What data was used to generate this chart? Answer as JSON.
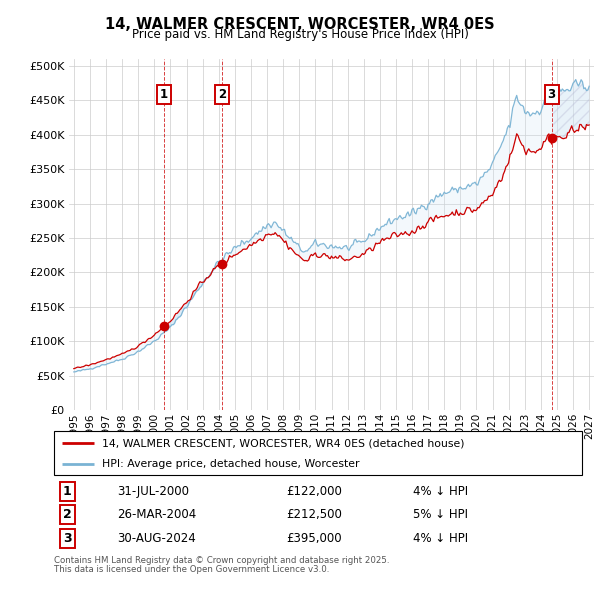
{
  "title": "14, WALMER CRESCENT, WORCESTER, WR4 0ES",
  "subtitle": "Price paid vs. HM Land Registry's House Price Index (HPI)",
  "ylim": [
    0,
    510000
  ],
  "yticks": [
    0,
    50000,
    100000,
    150000,
    200000,
    250000,
    300000,
    350000,
    400000,
    450000,
    500000
  ],
  "ytick_labels": [
    "£0",
    "£50K",
    "£100K",
    "£150K",
    "£200K",
    "£250K",
    "£300K",
    "£350K",
    "£400K",
    "£450K",
    "£500K"
  ],
  "xlim_start": 1994.7,
  "xlim_end": 2027.3,
  "xticks": [
    1995,
    1996,
    1997,
    1998,
    1999,
    2000,
    2001,
    2002,
    2003,
    2004,
    2005,
    2006,
    2007,
    2008,
    2009,
    2010,
    2011,
    2012,
    2013,
    2014,
    2015,
    2016,
    2017,
    2018,
    2019,
    2020,
    2021,
    2022,
    2023,
    2024,
    2025,
    2026,
    2027
  ],
  "sale_dates": [
    2000.58,
    2004.23,
    2024.67
  ],
  "sale_prices": [
    122000,
    212500,
    395000
  ],
  "sale_labels": [
    "1",
    "2",
    "3"
  ],
  "legend_line1": "14, WALMER CRESCENT, WORCESTER, WR4 0ES (detached house)",
  "legend_line2": "HPI: Average price, detached house, Worcester",
  "table_rows": [
    [
      "1",
      "31-JUL-2000",
      "£122,000",
      "4% ↓ HPI"
    ],
    [
      "2",
      "26-MAR-2004",
      "£212,500",
      "5% ↓ HPI"
    ],
    [
      "3",
      "30-AUG-2024",
      "£395,000",
      "4% ↓ HPI"
    ]
  ],
  "footnote1": "Contains HM Land Registry data © Crown copyright and database right 2025.",
  "footnote2": "This data is licensed under the Open Government Licence v3.0.",
  "hpi_color": "#7ab3d4",
  "price_color": "#cc0000",
  "shade_color": "#d0e5f5",
  "grid_color": "#cccccc",
  "background_color": "#ffffff"
}
